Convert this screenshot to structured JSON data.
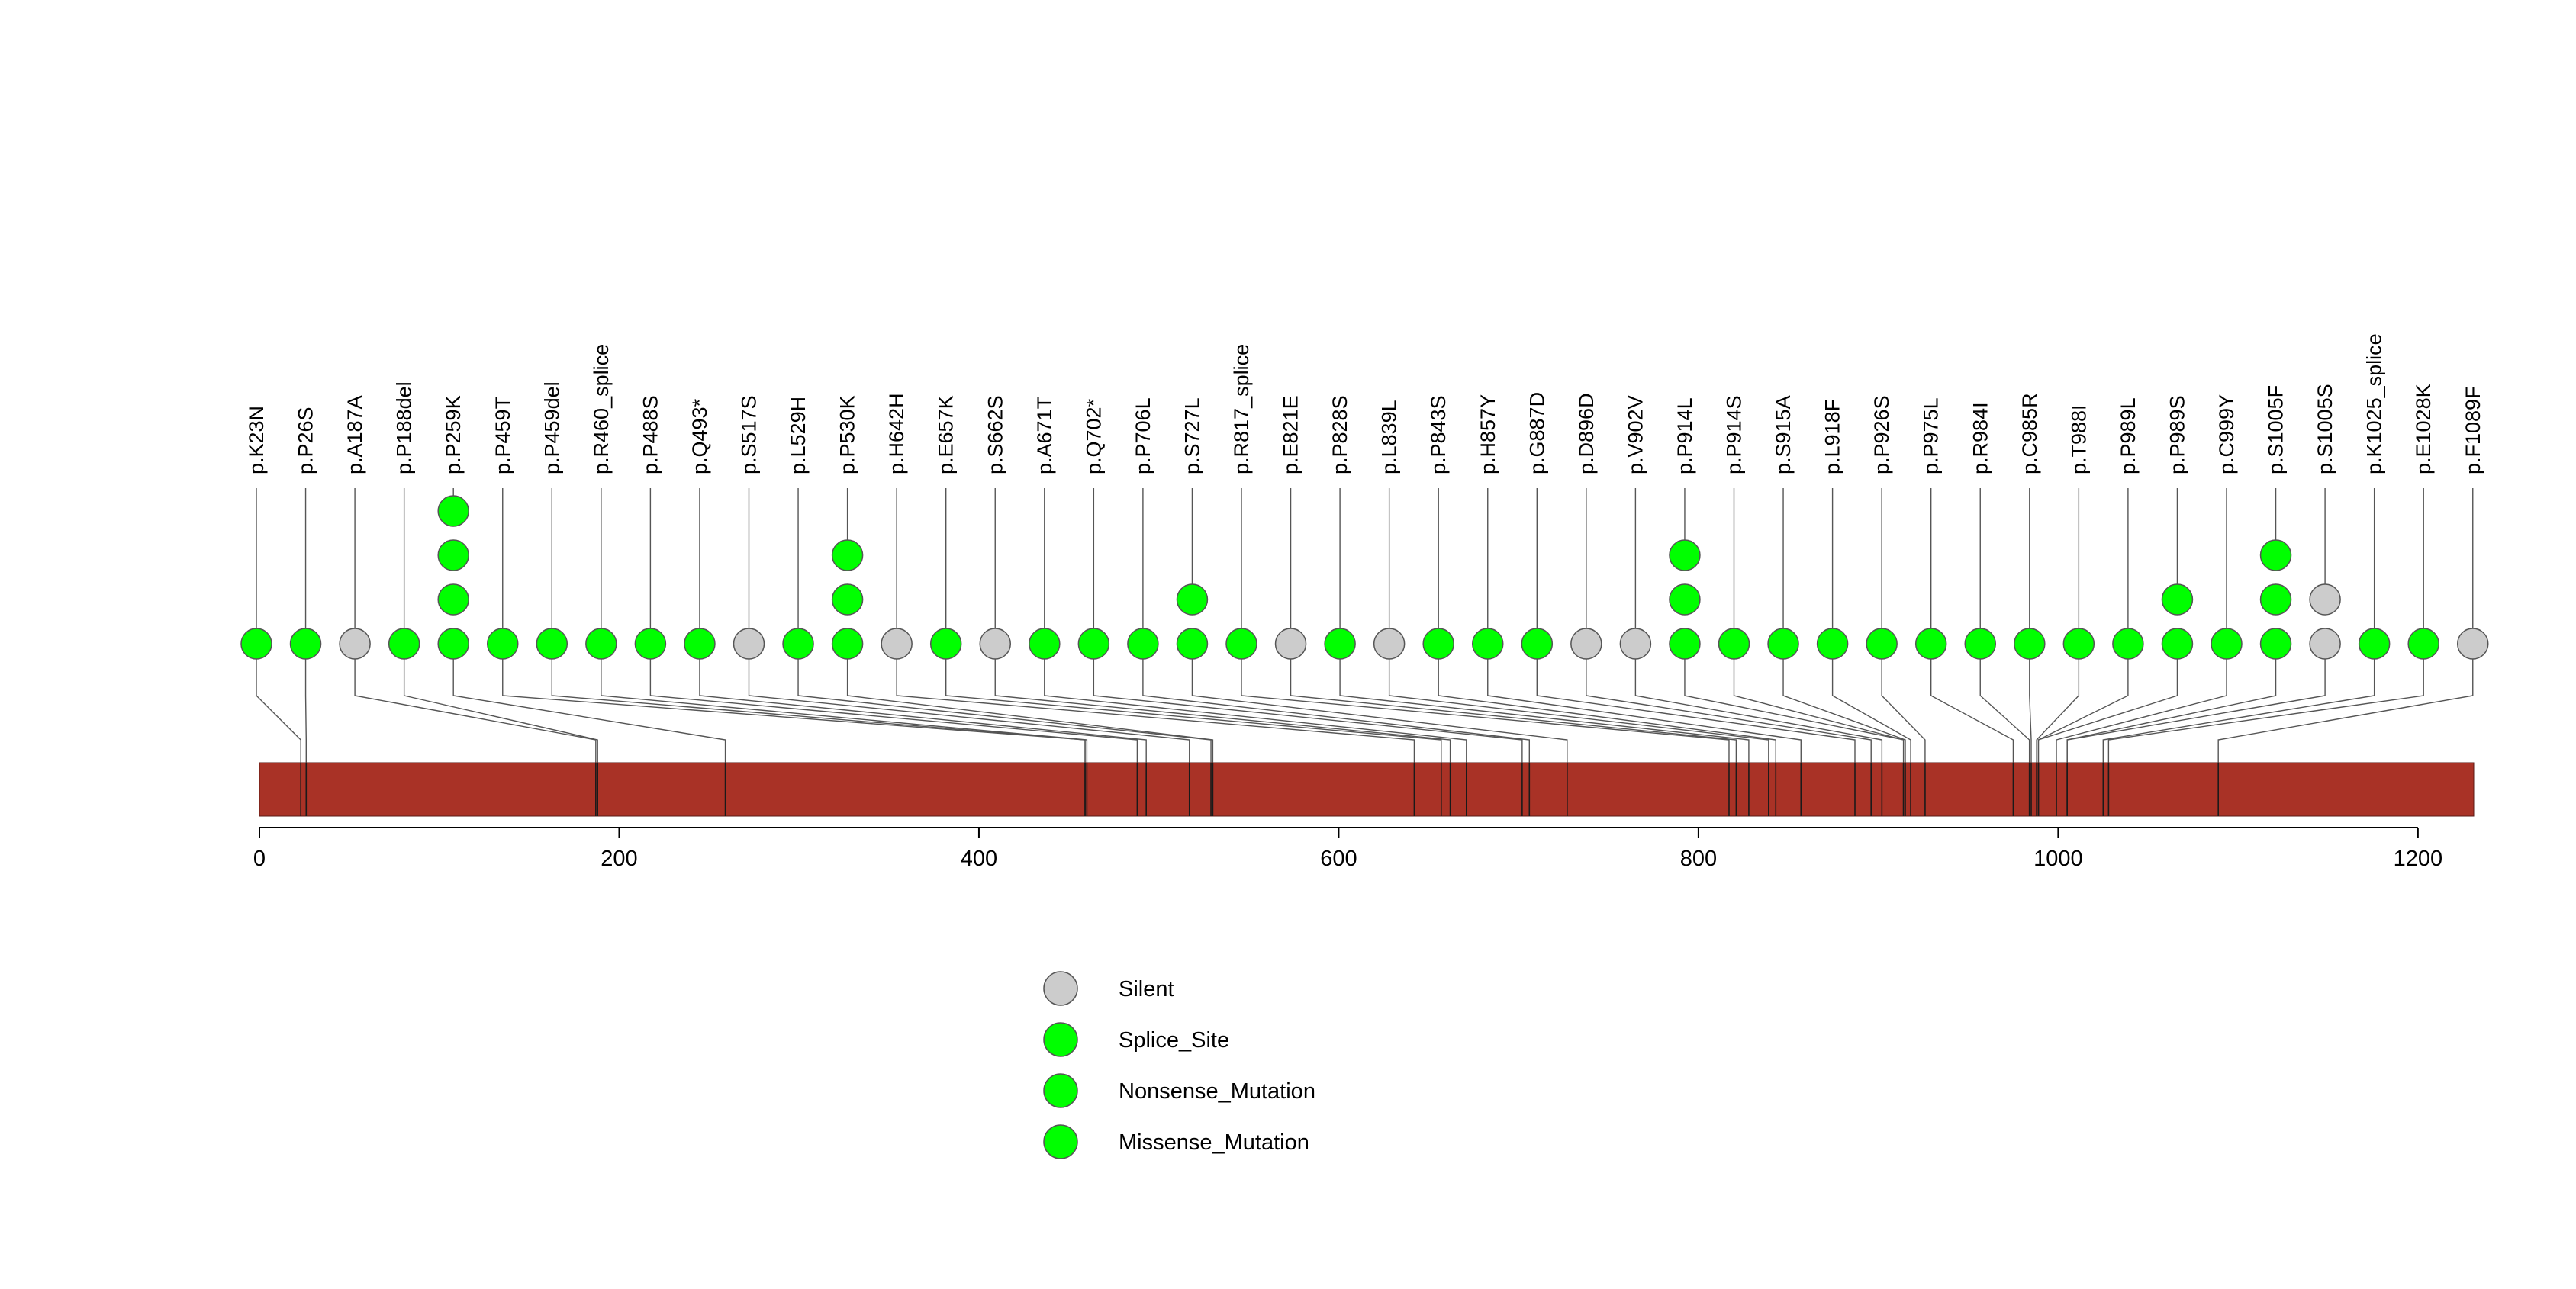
{
  "colors": {
    "silent": "#cccccc",
    "mutation": "#00ff00",
    "protein_bar": "#a93226",
    "stem": "#555555"
  },
  "chart_data": {
    "type": "lollipop",
    "protein_length": 1220,
    "axis": {
      "xlim": [
        0,
        1220
      ],
      "ticks": [
        0,
        200,
        400,
        600,
        800,
        1000,
        1200
      ]
    },
    "legend": [
      {
        "label": "Silent",
        "class": "Silent",
        "color": "#cccccc"
      },
      {
        "label": "Splice_Site",
        "class": "Splice_Site",
        "color": "#00ff00"
      },
      {
        "label": "Nonsense_Mutation",
        "class": "Nonsense_Mutation",
        "color": "#00ff00"
      },
      {
        "label": "Missense_Mutation",
        "class": "Missense_Mutation",
        "color": "#00ff00"
      }
    ],
    "mutations": [
      {
        "label": "p.K23N",
        "position": 23,
        "points": [
          "mutation"
        ]
      },
      {
        "label": "p.P26S",
        "position": 26,
        "points": [
          "mutation"
        ]
      },
      {
        "label": "p.A187A",
        "position": 187,
        "points": [
          "silent"
        ]
      },
      {
        "label": "p.P188del",
        "position": 188,
        "points": [
          "mutation"
        ]
      },
      {
        "label": "p.P259K",
        "position": 259,
        "points": [
          "mutation",
          "mutation",
          "mutation",
          "mutation"
        ]
      },
      {
        "label": "p.P459T",
        "position": 459,
        "points": [
          "mutation"
        ]
      },
      {
        "label": "p.P459del",
        "position": 459,
        "points": [
          "mutation"
        ]
      },
      {
        "label": "p.R460_splice",
        "position": 460,
        "points": [
          "mutation"
        ]
      },
      {
        "label": "p.P488S",
        "position": 488,
        "points": [
          "mutation"
        ]
      },
      {
        "label": "p.Q493*",
        "position": 493,
        "points": [
          "mutation"
        ]
      },
      {
        "label": "p.S517S",
        "position": 517,
        "points": [
          "silent"
        ]
      },
      {
        "label": "p.L529H",
        "position": 529,
        "points": [
          "mutation"
        ]
      },
      {
        "label": "p.P530K",
        "position": 530,
        "points": [
          "mutation",
          "mutation",
          "mutation"
        ]
      },
      {
        "label": "p.H642H",
        "position": 642,
        "points": [
          "silent"
        ]
      },
      {
        "label": "p.E657K",
        "position": 657,
        "points": [
          "mutation"
        ]
      },
      {
        "label": "p.S662S",
        "position": 662,
        "points": [
          "silent"
        ]
      },
      {
        "label": "p.A671T",
        "position": 671,
        "points": [
          "mutation"
        ]
      },
      {
        "label": "p.Q702*",
        "position": 702,
        "points": [
          "mutation"
        ]
      },
      {
        "label": "p.P706L",
        "position": 706,
        "points": [
          "mutation"
        ]
      },
      {
        "label": "p.S727L",
        "position": 727,
        "points": [
          "mutation",
          "mutation"
        ]
      },
      {
        "label": "p.R817_splice",
        "position": 817,
        "points": [
          "mutation"
        ]
      },
      {
        "label": "p.E821E",
        "position": 821,
        "points": [
          "silent"
        ]
      },
      {
        "label": "p.P828S",
        "position": 828,
        "points": [
          "mutation"
        ]
      },
      {
        "label": "p.L839L",
        "position": 839,
        "points": [
          "silent"
        ]
      },
      {
        "label": "p.P843S",
        "position": 843,
        "points": [
          "mutation"
        ]
      },
      {
        "label": "p.H857Y",
        "position": 857,
        "points": [
          "mutation"
        ]
      },
      {
        "label": "p.G887D",
        "position": 887,
        "points": [
          "mutation"
        ]
      },
      {
        "label": "p.D896D",
        "position": 896,
        "points": [
          "silent"
        ]
      },
      {
        "label": "p.V902V",
        "position": 902,
        "points": [
          "silent"
        ]
      },
      {
        "label": "p.P914L",
        "position": 914,
        "points": [
          "mutation",
          "mutation",
          "mutation"
        ]
      },
      {
        "label": "p.P914S",
        "position": 914,
        "points": [
          "mutation"
        ]
      },
      {
        "label": "p.S915A",
        "position": 915,
        "points": [
          "mutation"
        ]
      },
      {
        "label": "p.L918F",
        "position": 918,
        "points": [
          "mutation"
        ]
      },
      {
        "label": "p.P926S",
        "position": 926,
        "points": [
          "mutation"
        ]
      },
      {
        "label": "p.P975L",
        "position": 975,
        "points": [
          "mutation"
        ]
      },
      {
        "label": "p.R984I",
        "position": 984,
        "points": [
          "mutation"
        ]
      },
      {
        "label": "p.C985R",
        "position": 985,
        "points": [
          "mutation"
        ]
      },
      {
        "label": "p.T988I",
        "position": 988,
        "points": [
          "mutation"
        ]
      },
      {
        "label": "p.P989L",
        "position": 989,
        "points": [
          "mutation"
        ]
      },
      {
        "label": "p.P989S",
        "position": 989,
        "points": [
          "mutation",
          "mutation"
        ]
      },
      {
        "label": "p.C999Y",
        "position": 999,
        "points": [
          "mutation"
        ]
      },
      {
        "label": "p.S1005F",
        "position": 1005,
        "points": [
          "mutation",
          "mutation",
          "mutation"
        ]
      },
      {
        "label": "p.S1005S",
        "position": 1005,
        "points": [
          "silent",
          "silent"
        ]
      },
      {
        "label": "p.K1025_splice",
        "position": 1025,
        "points": [
          "mutation"
        ]
      },
      {
        "label": "p.E1028K",
        "position": 1028,
        "points": [
          "mutation"
        ]
      },
      {
        "label": "p.F1089F",
        "position": 1089,
        "points": [
          "silent"
        ]
      }
    ]
  }
}
